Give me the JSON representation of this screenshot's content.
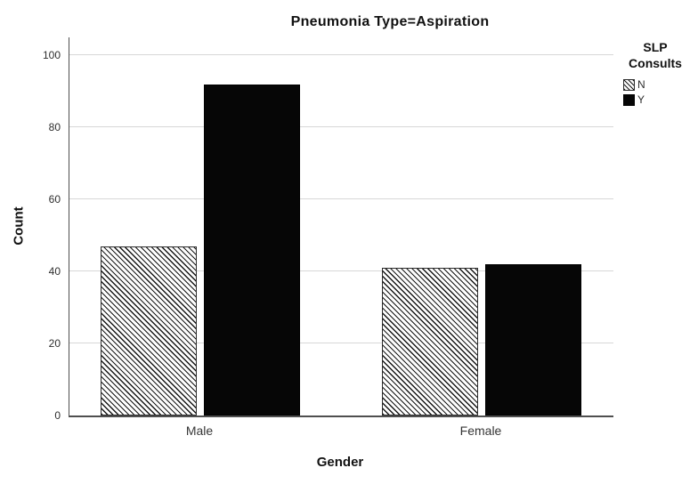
{
  "chart_data": {
    "type": "bar",
    "title": "Pneumonia Type=Aspiration",
    "xlabel": "Gender",
    "ylabel": "Count",
    "categories": [
      "Male",
      "Female"
    ],
    "series": [
      {
        "name": "N",
        "style": "hatched",
        "values": [
          47,
          41
        ]
      },
      {
        "name": "Y",
        "style": "solid",
        "values": [
          92,
          42
        ]
      }
    ],
    "y_ticks": [
      0,
      20,
      40,
      60,
      80,
      100
    ],
    "ylim": [
      0,
      105
    ],
    "grid": "horizontal",
    "legend_title": "SLP Consults",
    "legend_position": "right"
  },
  "colors": {
    "bar_solid": "#060606",
    "hatch_line": "#171717",
    "gridline": "#d7d7d7",
    "axis": "#4f4f4f",
    "text": "#1a1a1a"
  }
}
